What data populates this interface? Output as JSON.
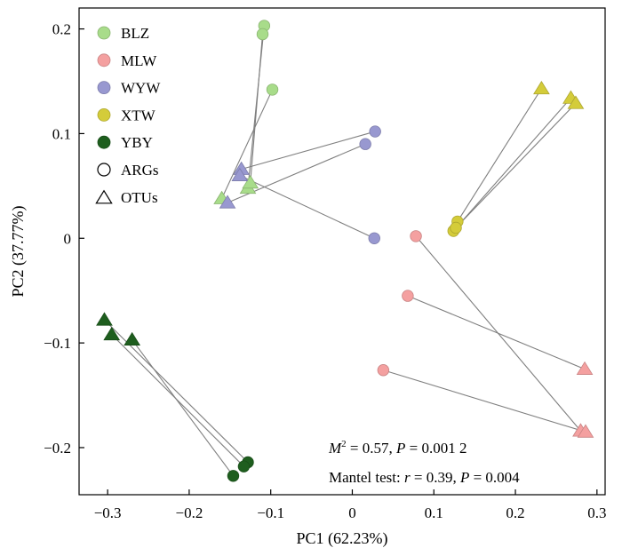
{
  "chart_data": {
    "type": "scatter",
    "xlabel": "PC1 (62.23%)",
    "ylabel": "PC2 (37.77%)",
    "xlim": [
      -0.335,
      0.31
    ],
    "ylim": [
      -0.245,
      0.22
    ],
    "x_ticks": [
      {
        "value": -0.3,
        "label": "-0.3"
      },
      {
        "value": -0.2,
        "label": "-0.2"
      },
      {
        "value": -0.1,
        "label": "-0.1"
      },
      {
        "value": 0,
        "label": "0"
      },
      {
        "value": 0.1,
        "label": "0.1"
      },
      {
        "value": 0.2,
        "label": "0.2"
      },
      {
        "value": 0.3,
        "label": "0.3"
      }
    ],
    "y_ticks": [
      {
        "value": 0.2,
        "label": "0.2"
      },
      {
        "value": 0.1,
        "label": "0.1"
      },
      {
        "value": 0,
        "label": "0"
      },
      {
        "value": -0.1,
        "label": "-0.1"
      },
      {
        "value": -0.2,
        "label": "-0.2"
      }
    ],
    "grid": false,
    "legend_position": "top-left",
    "legend": {
      "groups": [
        {
          "name": "BLZ",
          "color": "#a8dc8a"
        },
        {
          "name": "MLW",
          "color": "#f4a0a0"
        },
        {
          "name": "WYW",
          "color": "#9898d0"
        },
        {
          "name": "XTW",
          "color": "#d4cc3a"
        },
        {
          "name": "YBY",
          "color": "#1e5e1e"
        }
      ],
      "markers": [
        {
          "name": "ARGs",
          "shape": "circle"
        },
        {
          "name": "OTUs",
          "shape": "triangle"
        }
      ]
    },
    "annotations": {
      "m2_symbol": "M",
      "m2_exp": "2",
      "m2_rest": " = 0.57, ",
      "m2_p": "P",
      "m2_p_value": " = 0.001 2",
      "mantel_prefix": "Mantel test: ",
      "mantel_r": "r",
      "mantel_r_value": " = 0.39, ",
      "mantel_p": "P",
      "mantel_p_value": " = 0.004"
    },
    "series": [
      {
        "name": "BLZ",
        "color": "#a8dc8a",
        "args": [
          [
            -0.108,
            0.203
          ],
          [
            -0.11,
            0.195
          ],
          [
            -0.098,
            0.142
          ]
        ],
        "otus": [
          [
            -0.16,
            0.038
          ],
          [
            -0.128,
            0.048
          ],
          [
            -0.125,
            0.053
          ]
        ]
      },
      {
        "name": "MLW",
        "color": "#f4a0a0",
        "args": [
          [
            0.078,
            0.002
          ],
          [
            0.068,
            -0.055
          ],
          [
            0.038,
            -0.126
          ]
        ],
        "otus": [
          [
            0.285,
            -0.125
          ],
          [
            0.28,
            -0.184
          ],
          [
            0.286,
            -0.185
          ]
        ]
      },
      {
        "name": "WYW",
        "color": "#9898d0",
        "args": [
          [
            0.028,
            0.102
          ],
          [
            0.016,
            0.09
          ],
          [
            0.027,
            0.0
          ]
        ],
        "otus": [
          [
            -0.136,
            0.066
          ],
          [
            -0.138,
            0.06
          ],
          [
            -0.153,
            0.034
          ]
        ]
      },
      {
        "name": "XTW",
        "color": "#d4cc3a",
        "args": [
          [
            0.129,
            0.016
          ],
          [
            0.124,
            0.007
          ],
          [
            0.127,
            0.01
          ]
        ],
        "otus": [
          [
            0.232,
            0.143
          ],
          [
            0.268,
            0.134
          ],
          [
            0.274,
            0.129
          ]
        ]
      },
      {
        "name": "YBY",
        "color": "#1e5e1e",
        "args": [
          [
            -0.128,
            -0.214
          ],
          [
            -0.133,
            -0.218
          ],
          [
            -0.146,
            -0.227
          ]
        ],
        "otus": [
          [
            -0.304,
            -0.078
          ],
          [
            -0.295,
            -0.092
          ],
          [
            -0.27,
            -0.097
          ]
        ]
      }
    ],
    "procrustes_links": [
      {
        "group": "BLZ",
        "from": [
          -0.108,
          0.203
        ],
        "to": [
          -0.128,
          0.048
        ]
      },
      {
        "group": "BLZ",
        "from": [
          -0.11,
          0.195
        ],
        "to": [
          -0.125,
          0.053
        ]
      },
      {
        "group": "BLZ",
        "from": [
          -0.098,
          0.142
        ],
        "to": [
          -0.16,
          0.038
        ]
      },
      {
        "group": "WYW",
        "from": [
          0.028,
          0.102
        ],
        "to": [
          -0.136,
          0.066
        ]
      },
      {
        "group": "WYW",
        "from": [
          0.016,
          0.09
        ],
        "to": [
          -0.153,
          0.034
        ]
      },
      {
        "group": "WYW",
        "from": [
          0.027,
          0.0
        ],
        "to": [
          -0.138,
          0.06
        ]
      },
      {
        "group": "XTW",
        "from": [
          0.129,
          0.016
        ],
        "to": [
          0.232,
          0.143
        ]
      },
      {
        "group": "XTW",
        "from": [
          0.124,
          0.007
        ],
        "to": [
          0.268,
          0.134
        ]
      },
      {
        "group": "XTW",
        "from": [
          0.127,
          0.01
        ],
        "to": [
          0.274,
          0.129
        ]
      },
      {
        "group": "MLW",
        "from": [
          0.078,
          0.002
        ],
        "to": [
          0.28,
          -0.184
        ]
      },
      {
        "group": "MLW",
        "from": [
          0.068,
          -0.055
        ],
        "to": [
          0.285,
          -0.125
        ]
      },
      {
        "group": "MLW",
        "from": [
          0.038,
          -0.126
        ],
        "to": [
          0.286,
          -0.185
        ]
      },
      {
        "group": "YBY",
        "from": [
          -0.128,
          -0.214
        ],
        "to": [
          -0.304,
          -0.078
        ]
      },
      {
        "group": "YBY",
        "from": [
          -0.133,
          -0.218
        ],
        "to": [
          -0.295,
          -0.092
        ]
      },
      {
        "group": "YBY",
        "from": [
          -0.146,
          -0.227
        ],
        "to": [
          -0.27,
          -0.097
        ]
      }
    ]
  }
}
